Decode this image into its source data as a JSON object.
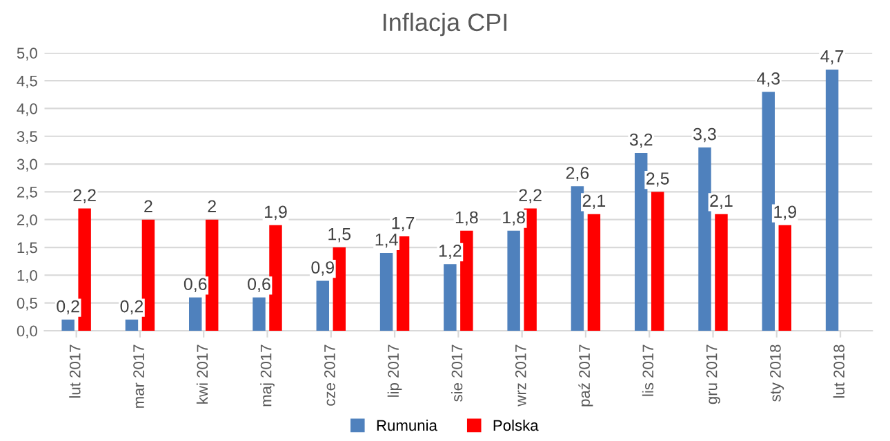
{
  "chart_data": {
    "type": "bar",
    "title": "Inflacja CPI",
    "categories": [
      "lut 2017",
      "mar 2017",
      "kwi 2017",
      "maj 2017",
      "cze 2017",
      "lip 2017",
      "sie 2017",
      "wrz 2017",
      "paź 2017",
      "lis 2017",
      "gru 2017",
      "sty 2018",
      "lut 2018"
    ],
    "series": [
      {
        "name": "Rumunia",
        "color": "#4f81bd",
        "values": [
          0.2,
          0.2,
          0.6,
          0.6,
          0.9,
          1.4,
          1.2,
          1.8,
          2.6,
          3.2,
          3.3,
          4.3,
          4.7
        ],
        "value_labels": [
          "0,2",
          "0,2",
          "0,6",
          "0,6",
          "0,9",
          "1,4",
          "1,2",
          "1,8",
          "2,6",
          "3,2",
          "3,3",
          "4,3",
          "4,7"
        ]
      },
      {
        "name": "Polska",
        "color": "#ff0000",
        "values": [
          2.2,
          2.0,
          2.0,
          1.9,
          1.5,
          1.7,
          1.8,
          2.2,
          2.1,
          2.5,
          2.1,
          1.9,
          null
        ],
        "value_labels": [
          "2,2",
          "2",
          "2",
          "1,9",
          "1,5",
          "1,7",
          "1,8",
          "2,2",
          "2,1",
          "2,5",
          "2,1",
          "1,9",
          null
        ]
      }
    ],
    "ylim": [
      0,
      5
    ],
    "yticks": [
      {
        "value": 0,
        "label": "0,0"
      },
      {
        "value": 0.5,
        "label": "0,5"
      },
      {
        "value": 1,
        "label": "1,0"
      },
      {
        "value": 1.5,
        "label": "1,5"
      },
      {
        "value": 2,
        "label": "2,0"
      },
      {
        "value": 2.5,
        "label": "2,5"
      },
      {
        "value": 3,
        "label": "3,0"
      },
      {
        "value": 3.5,
        "label": "3,5"
      },
      {
        "value": 4,
        "label": "4,0"
      },
      {
        "value": 4.5,
        "label": "4,5"
      },
      {
        "value": 5,
        "label": "5,0"
      }
    ],
    "grid": "y",
    "legend": "bottom"
  }
}
